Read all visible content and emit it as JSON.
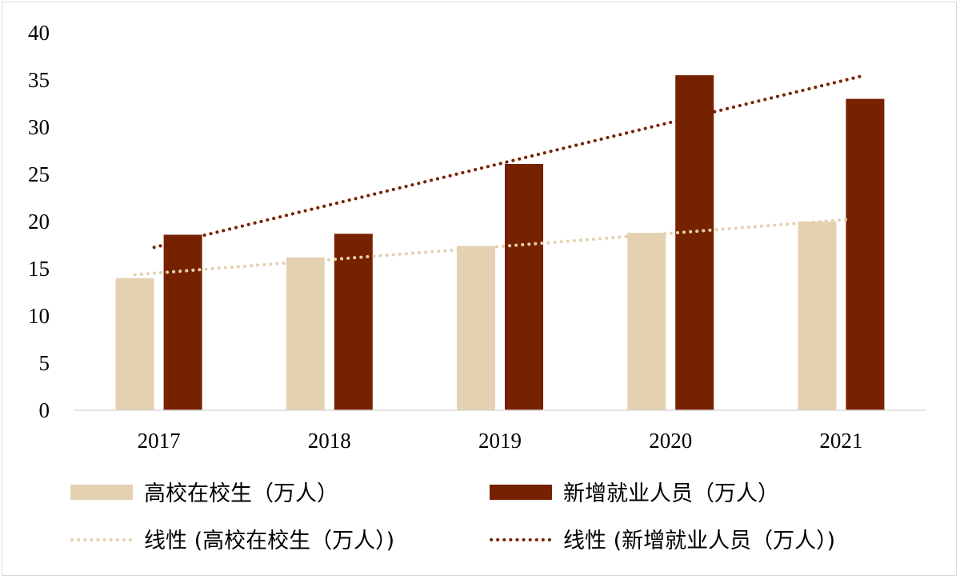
{
  "chart_data": {
    "type": "bar",
    "categories": [
      "2017",
      "2018",
      "2019",
      "2020",
      "2021"
    ],
    "series": [
      {
        "name": "高校在校生（万人）",
        "values": [
          14.0,
          16.2,
          17.4,
          18.8,
          20.0
        ],
        "color": "#e3d1b1"
      },
      {
        "name": "新增就业人员（万人）",
        "values": [
          18.6,
          18.7,
          26.1,
          35.5,
          33.0
        ],
        "color": "#762100"
      }
    ],
    "trendlines": [
      {
        "name": "线性 (高校在校生（万人）)",
        "series": 0,
        "type": "linear",
        "color": "#e3d1b1"
      },
      {
        "name": "线性 (新增就业人员（万人）)",
        "series": 1,
        "type": "linear",
        "color": "#762100"
      }
    ],
    "ylim": [
      0,
      40
    ],
    "yticks": [
      "0",
      "5",
      "10",
      "15",
      "20",
      "25",
      "30",
      "35",
      "40"
    ],
    "grid": false,
    "legend_position": "bottom"
  }
}
